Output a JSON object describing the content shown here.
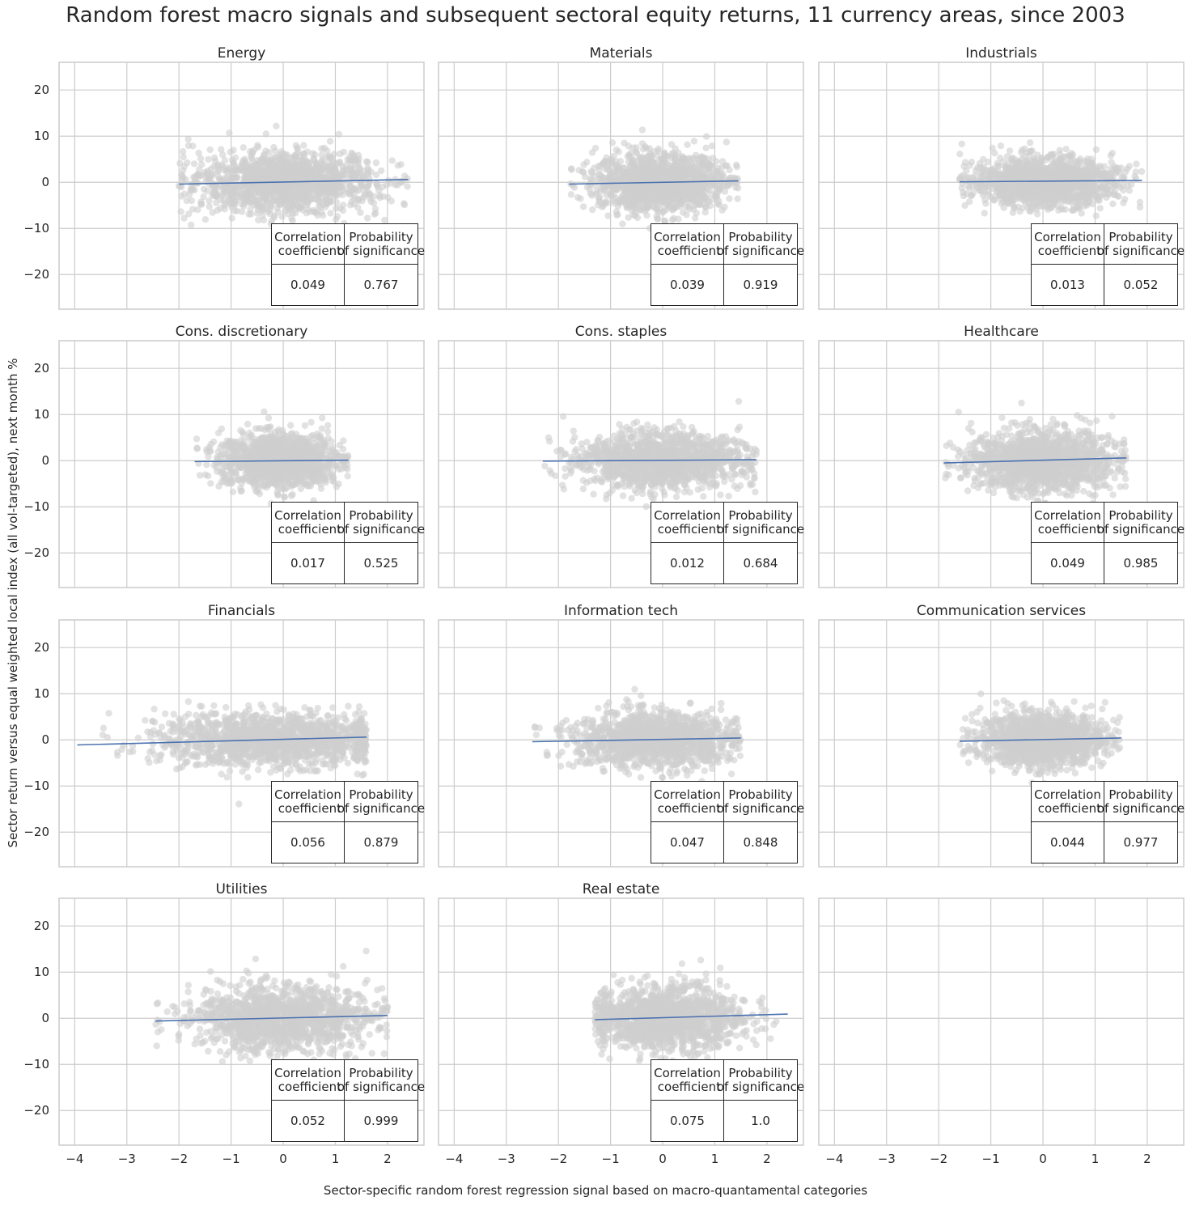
{
  "title": "Random forest macro signals and subsequent sectoral equity returns, 11 currency areas, since 2003",
  "ylabel": "Sector return versus equal weighted local index (all vol-targeted), next month %",
  "xlabel": "Sector-specific random forest regression signal based on macro-quantamental categories",
  "colors": {
    "points": "#cfcfcf",
    "regression_line": "#4c72b0",
    "grid": "#cccccc",
    "frame": "#cccccc"
  },
  "stat_headers": {
    "corr": "Correlation\n coefficient",
    "prob": "Probability\nof significance"
  },
  "chart_data": {
    "type": "scatter",
    "layout": "4x3 facet grid",
    "xlim": [
      -4.3,
      2.7
    ],
    "ylim": [
      -27.5,
      26
    ],
    "x_ticks": [
      -4,
      -3,
      -2,
      -1,
      0,
      1,
      2
    ],
    "x_tick_labels": [
      "−4",
      "−3",
      "−2",
      "−1",
      "0",
      "1",
      "2"
    ],
    "y_ticks": [
      20,
      10,
      0,
      -10,
      -20
    ],
    "y_tick_labels": [
      "20",
      "10",
      "0",
      "−10",
      "−20"
    ],
    "grid": true,
    "panels": [
      {
        "title": "Energy",
        "x_range": [
          -2.0,
          2.4
        ],
        "y_sd": 3.2,
        "line": {
          "x": [
            -2.0,
            2.4
          ],
          "y": [
            -0.4,
            0.6
          ]
        },
        "corr": "0.049",
        "prob": "0.767"
      },
      {
        "title": "Materials",
        "x_range": [
          -1.8,
          1.45
        ],
        "y_sd": 3.0,
        "line": {
          "x": [
            -1.8,
            1.45
          ],
          "y": [
            -0.4,
            0.3
          ]
        },
        "corr": "0.039",
        "prob": "0.919"
      },
      {
        "title": "Industrials",
        "x_range": [
          -1.6,
          1.9
        ],
        "y_sd": 2.6,
        "line": {
          "x": [
            -1.6,
            1.9
          ],
          "y": [
            0.1,
            0.4
          ]
        },
        "corr": "0.013",
        "prob": "0.052"
      },
      {
        "title": "Cons. discretionary",
        "x_range": [
          -1.7,
          1.25
        ],
        "y_sd": 2.8,
        "line": {
          "x": [
            -1.7,
            1.25
          ],
          "y": [
            -0.2,
            0.1
          ]
        },
        "corr": "0.017",
        "prob": "0.525"
      },
      {
        "title": "Cons. staples",
        "x_range": [
          -2.3,
          1.8
        ],
        "y_sd": 3.0,
        "line": {
          "x": [
            -2.3,
            1.8
          ],
          "y": [
            -0.1,
            0.2
          ]
        },
        "corr": "0.012",
        "prob": "0.684"
      },
      {
        "title": "Healthcare",
        "x_range": [
          -1.9,
          1.6
        ],
        "y_sd": 3.3,
        "line": {
          "x": [
            -1.9,
            1.6
          ],
          "y": [
            -0.5,
            0.6
          ]
        },
        "corr": "0.049",
        "prob": "0.985"
      },
      {
        "title": "Financials",
        "x_range": [
          -3.95,
          1.6
        ],
        "y_sd": 2.9,
        "line": {
          "x": [
            -3.95,
            1.6
          ],
          "y": [
            -1.1,
            0.6
          ]
        },
        "corr": "0.056",
        "prob": "0.879"
      },
      {
        "title": "Information tech",
        "x_range": [
          -2.5,
          1.5
        ],
        "y_sd": 2.9,
        "line": {
          "x": [
            -2.5,
            1.5
          ],
          "y": [
            -0.4,
            0.4
          ]
        },
        "corr": "0.047",
        "prob": "0.848"
      },
      {
        "title": "Communication services",
        "x_range": [
          -1.6,
          1.5
        ],
        "y_sd": 2.8,
        "line": {
          "x": [
            -1.6,
            1.5
          ],
          "y": [
            -0.3,
            0.4
          ]
        },
        "corr": "0.044",
        "prob": "0.977"
      },
      {
        "title": "Utilities",
        "x_range": [
          -2.45,
          2.0
        ],
        "y_sd": 3.4,
        "line": {
          "x": [
            -2.45,
            2.0
          ],
          "y": [
            -0.6,
            0.6
          ]
        },
        "corr": "0.052",
        "prob": "0.999"
      },
      {
        "title": "Real estate",
        "x_range": [
          -1.3,
          2.4
        ],
        "y_sd": 3.3,
        "line": {
          "x": [
            -1.3,
            2.4
          ],
          "y": [
            -0.3,
            0.9
          ]
        },
        "corr": "0.075",
        "prob": "1.0"
      },
      {
        "title": "",
        "empty": true
      }
    ]
  }
}
